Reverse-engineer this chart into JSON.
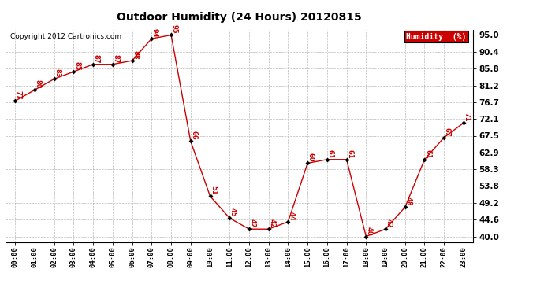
{
  "title": "Outdoor Humidity (24 Hours) 20120815",
  "copyright": "Copyright 2012 Cartronics.com",
  "legend_label": "Humidity  (%)",
  "x_labels": [
    "00:00",
    "01:00",
    "02:00",
    "03:00",
    "04:00",
    "05:00",
    "06:00",
    "07:00",
    "08:00",
    "09:00",
    "10:00",
    "11:00",
    "12:00",
    "13:00",
    "14:00",
    "15:00",
    "16:00",
    "17:00",
    "18:00",
    "19:00",
    "20:00",
    "21:00",
    "22:00",
    "23:00"
  ],
  "y_values": [
    77,
    80,
    83,
    85,
    87,
    87,
    88,
    94,
    95,
    66,
    51,
    45,
    42,
    42,
    44,
    60,
    61,
    61,
    40,
    42,
    48,
    61,
    67,
    71
  ],
  "y_ticks": [
    40.0,
    44.6,
    49.2,
    53.8,
    58.3,
    62.9,
    67.5,
    72.1,
    76.7,
    81.2,
    85.8,
    90.4,
    95.0
  ],
  "y_min": 38.5,
  "y_max": 96.5,
  "line_color": "#cc0000",
  "marker_color": "#000000",
  "label_color": "#cc0000",
  "bg_color": "#ffffff",
  "grid_color": "#aaaaaa",
  "title_color": "#000000",
  "legend_bg": "#cc0000",
  "legend_text_color": "#ffffff"
}
